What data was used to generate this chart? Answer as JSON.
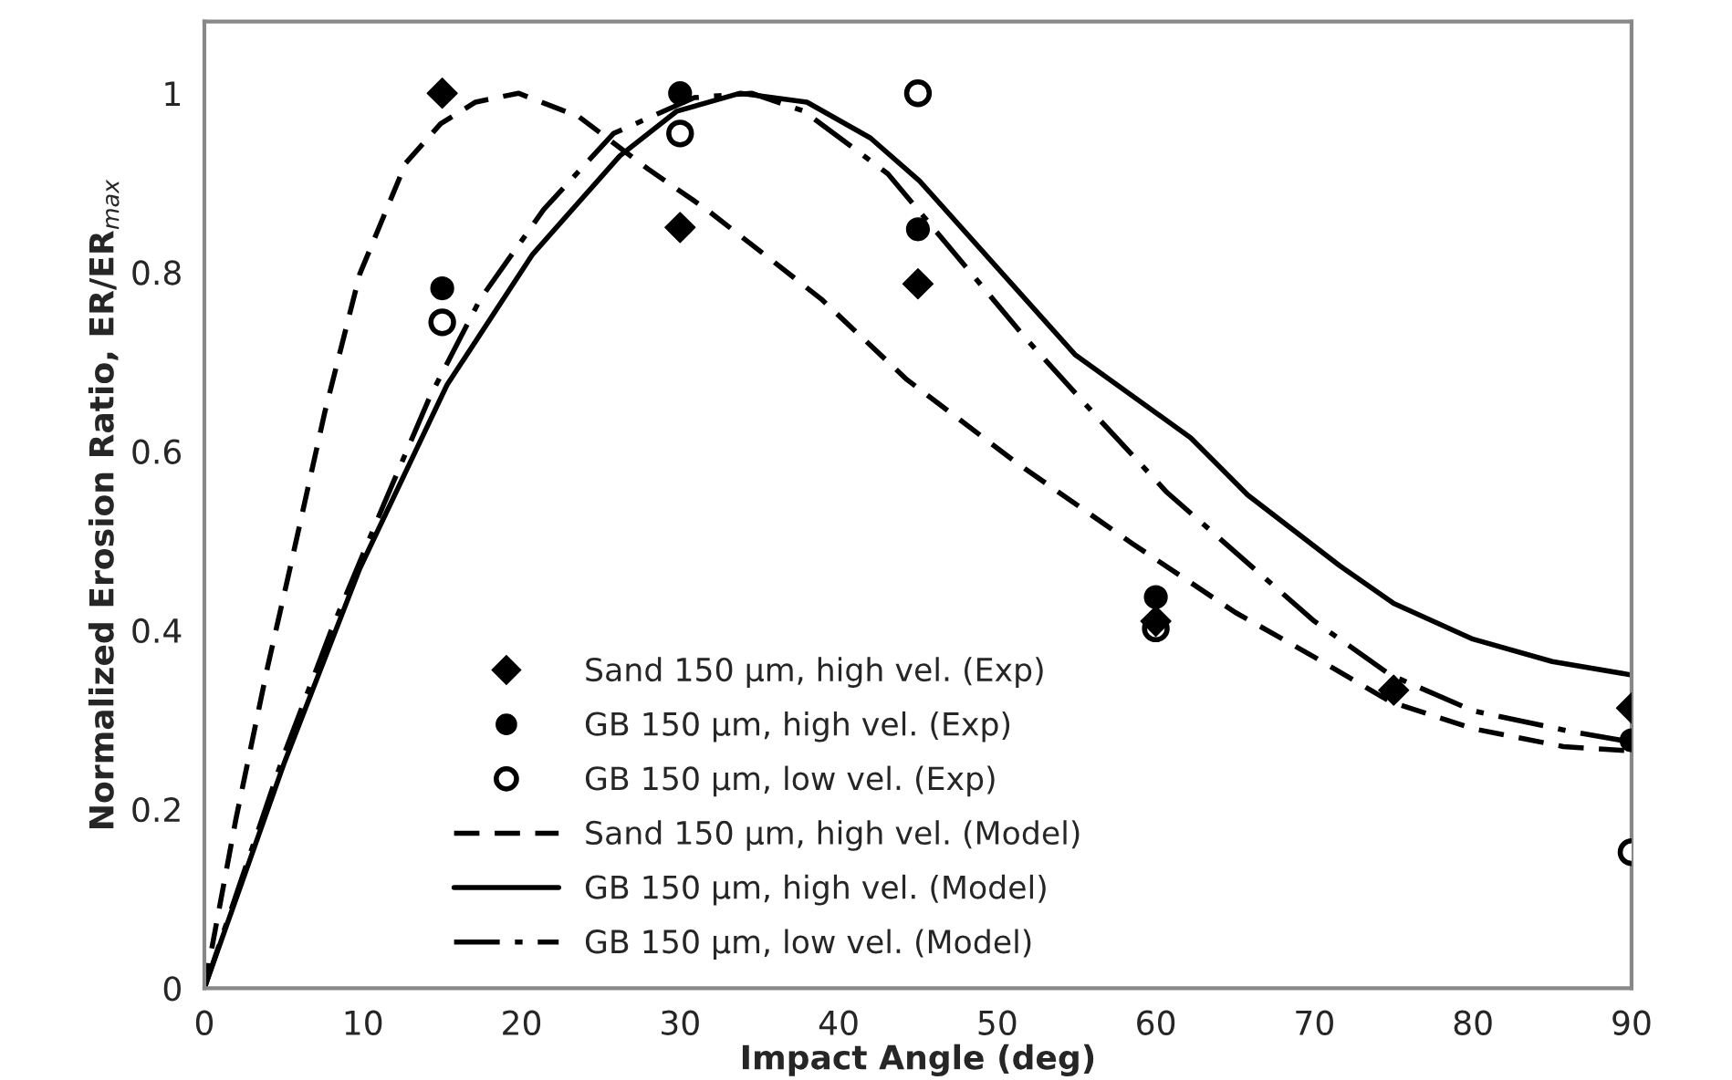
{
  "chart_data": {
    "type": "scatter",
    "xlabel": "Impact Angle (deg)",
    "ylabel": "Normalized Erosion Ratio, ER/ER$_{max}$",
    "xlim": [
      0,
      90
    ],
    "xticks": [
      0,
      10,
      20,
      30,
      40,
      50,
      60,
      70,
      80,
      90
    ],
    "ylim": [
      0,
      1.08
    ],
    "yticks": [
      0,
      0.2,
      0.4,
      0.6,
      0.8,
      1
    ],
    "grid": false,
    "legend": "bottom",
    "tick_labels": [
      "x",
      "y"
    ],
    "series": [
      {
        "name": "Sand 150 µm, high vel. (Exp)",
        "marker": "diamond",
        "color": "#000000",
        "x": [
          15,
          30,
          45,
          60,
          75,
          90
        ],
        "values": [
          1.0,
          0.85,
          0.787,
          0.41,
          0.333,
          0.313
        ]
      },
      {
        "name": "GB 150 µm, high vel. (Exp)",
        "marker": "circle",
        "color": "#000000",
        "x": [
          15,
          30,
          45,
          60,
          90
        ],
        "values": [
          0.782,
          1.0,
          0.848,
          0.437,
          0.277
        ]
      },
      {
        "name": "GB 150 µm, low vel. (Exp)",
        "marker": "circle",
        "color": "#000000",
        "x": [
          15,
          30,
          45,
          60,
          90
        ],
        "values": [
          0.744,
          0.955,
          1.0,
          0.402,
          0.152
        ]
      },
      {
        "name": "Sand 150 µm, high vel. (Model)",
        "type": "line",
        "marker": "none",
        "line_style": "dashed",
        "color": "#000000",
        "x": [
          0,
          2,
          4,
          5.4,
          7.6,
          9.8,
          12.7,
          14.9,
          17.1,
          19.8,
          23.6,
          28,
          31.6,
          35.3,
          38.9,
          44.3,
          51.3,
          58.5,
          65,
          70,
          74.8,
          80,
          85.7,
          90
        ],
        "values": [
          0,
          0.19,
          0.36,
          0.469,
          0.644,
          0.798,
          0.922,
          0.966,
          0.99,
          1.0,
          0.974,
          0.915,
          0.871,
          0.82,
          0.77,
          0.68,
          0.586,
          0.497,
          0.42,
          0.37,
          0.32,
          0.29,
          0.27,
          0.265
        ]
      },
      {
        "name": "GB 150 µm, high vel. (Model)",
        "type": "line",
        "marker": "none",
        "line_style": "solid",
        "color": "#000000",
        "x": [
          0,
          5,
          9.8,
          15.3,
          20.7,
          26.2,
          29.8,
          33.8,
          38,
          42,
          45.1,
          49.8,
          54.9,
          62.2,
          65.8,
          71.6,
          75,
          80,
          85,
          90
        ],
        "values": [
          0,
          0.25,
          0.469,
          0.674,
          0.82,
          0.93,
          0.98,
          1.0,
          0.99,
          0.95,
          0.902,
          0.809,
          0.708,
          0.615,
          0.551,
          0.472,
          0.43,
          0.39,
          0.365,
          0.35
        ]
      },
      {
        "name": "GB 150 µm, low vel. (Model)",
        "type": "line",
        "marker": "none",
        "line_style": "dashdot",
        "color": "#000000",
        "x": [
          0,
          5,
          8,
          11.3,
          14.2,
          17.4,
          21.4,
          25.8,
          30.9,
          34.5,
          37.8,
          43.1,
          47.5,
          51.8,
          56.2,
          60.7,
          65.8,
          70,
          74.8,
          80,
          86.1,
          90
        ],
        "values": [
          0,
          0.26,
          0.4,
          0.54,
          0.66,
          0.77,
          0.87,
          0.955,
          0.995,
          1.0,
          0.98,
          0.91,
          0.817,
          0.726,
          0.64,
          0.554,
          0.475,
          0.41,
          0.35,
          0.31,
          0.287,
          0.275
        ]
      }
    ]
  }
}
